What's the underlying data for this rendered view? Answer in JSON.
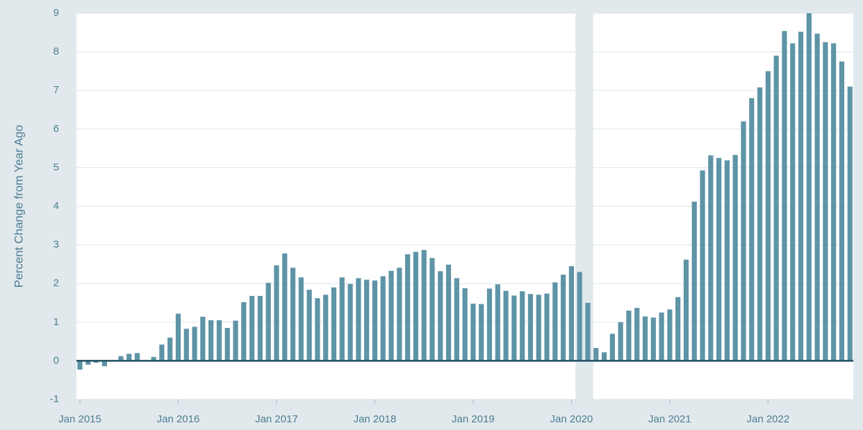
{
  "chart_data": {
    "type": "bar",
    "y_label": "Percent Change from Year Ago",
    "categories": [
      "Jan 2015",
      null,
      null,
      null,
      null,
      null,
      null,
      null,
      null,
      null,
      null,
      null,
      "Jan 2016",
      null,
      null,
      null,
      null,
      null,
      null,
      null,
      null,
      null,
      null,
      null,
      "Jan 2017",
      null,
      null,
      null,
      null,
      null,
      null,
      null,
      null,
      null,
      null,
      null,
      "Jan 2018",
      null,
      null,
      null,
      null,
      null,
      null,
      null,
      null,
      null,
      null,
      null,
      "Jan 2019",
      null,
      null,
      null,
      null,
      null,
      null,
      null,
      null,
      null,
      null,
      null,
      "Jan 2020",
      null,
      null,
      null,
      null,
      null,
      null,
      null,
      null,
      null,
      null,
      null,
      "Jan 2021",
      null,
      null,
      null,
      null,
      null,
      null,
      null,
      null,
      null,
      null,
      null,
      "Jan 2022",
      null,
      null,
      null,
      null,
      null,
      null,
      null,
      null,
      null,
      null
    ],
    "values": [
      -0.23,
      -0.1,
      -0.05,
      -0.14,
      0.0,
      0.12,
      0.18,
      0.2,
      0.0,
      0.1,
      0.42,
      0.6,
      1.22,
      0.83,
      0.88,
      1.14,
      1.05,
      1.05,
      0.85,
      1.04,
      1.52,
      1.68,
      1.68,
      2.02,
      2.47,
      2.78,
      2.41,
      2.16,
      1.84,
      1.62,
      1.71,
      1.9,
      2.16,
      1.99,
      2.14,
      2.1,
      2.08,
      2.19,
      2.33,
      2.41,
      2.76,
      2.82,
      2.87,
      2.66,
      2.32,
      2.49,
      2.14,
      1.88,
      1.48,
      1.47,
      1.87,
      1.98,
      1.81,
      1.69,
      1.8,
      1.73,
      1.71,
      1.74,
      2.03,
      2.23,
      2.45,
      2.3,
      1.5,
      0.33,
      0.22,
      0.7,
      1.0,
      1.3,
      1.37,
      1.15,
      1.12,
      1.25,
      1.33,
      1.65,
      2.62,
      4.12,
      4.93,
      5.32,
      5.25,
      5.19,
      5.33,
      6.2,
      6.8,
      7.08,
      7.5,
      7.9,
      8.54,
      8.22,
      8.52,
      9.0,
      8.47,
      8.25,
      8.22,
      7.75,
      7.1
    ],
    "color": "#5e94a6",
    "ylim": [
      -1,
      9
    ],
    "yticks": [
      -1,
      0,
      1,
      2,
      3,
      4,
      5,
      6,
      7,
      8,
      9
    ],
    "grid": true
  }
}
